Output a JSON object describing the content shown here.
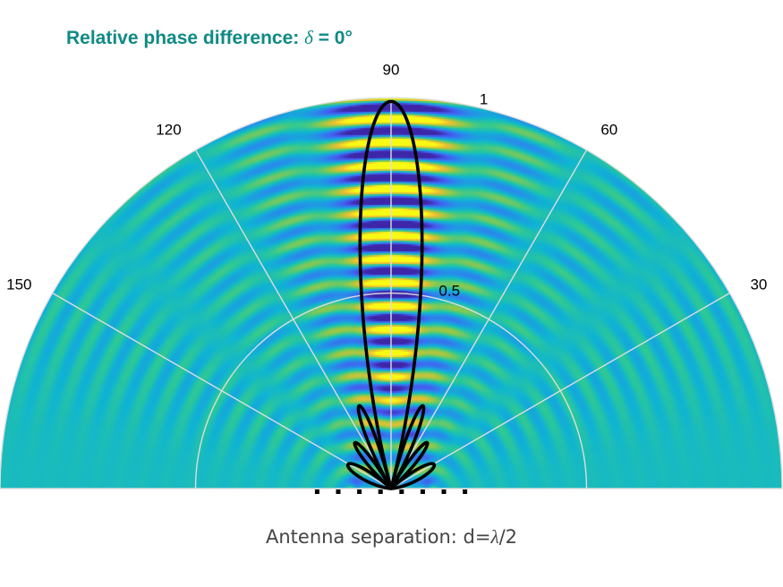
{
  "title": {
    "prefix": "Relative phase difference: ",
    "symbol": "δ",
    "suffix": " = 0°"
  },
  "footer": {
    "prefix": "Antenna separation: d=",
    "symbol": "λ",
    "suffix": "/2"
  },
  "chart_data": {
    "type": "polar-line",
    "theta_range_deg": [
      0,
      180
    ],
    "r_range": [
      0,
      1
    ],
    "angle_ticks": [
      {
        "angle": 30,
        "label": "30"
      },
      {
        "angle": 60,
        "label": "60"
      },
      {
        "angle": 90,
        "label": "90"
      },
      {
        "angle": 120,
        "label": "120"
      },
      {
        "angle": 150,
        "label": "150"
      }
    ],
    "radial_ticks": [
      {
        "r": 0.5,
        "label": "0.5"
      },
      {
        "r": 1,
        "label": "1"
      }
    ],
    "antenna_count": 8,
    "phase_difference_deg": 0,
    "separation_wavelengths": 0.5,
    "pattern": "normalized array factor |sin(N·ψ/2) / (N·sin(ψ/2))|, ψ = π·cos(θ)",
    "background": "interference field heatmap (parula colormap)",
    "line_color": "#000000",
    "grid_color": "#dddddd"
  }
}
